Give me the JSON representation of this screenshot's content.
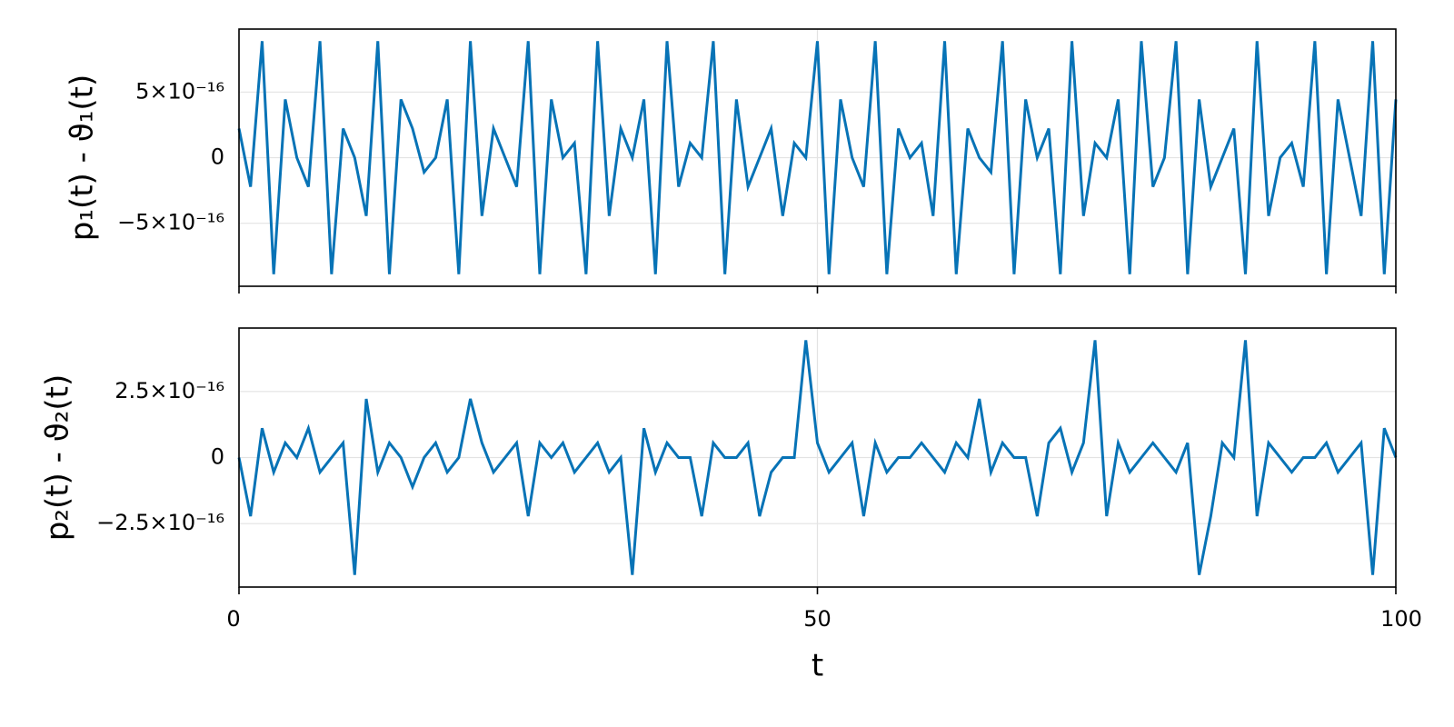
{
  "chart_data": [
    {
      "type": "line",
      "ylabel": "p₁(t) - ϑ₁(t)",
      "color": "#0773b6",
      "grid": true,
      "xlim": [
        0,
        100
      ],
      "xticks": [
        0,
        50,
        100
      ],
      "ylim": [
        -9.8e-16,
        9.8e-16
      ],
      "yticks": [
        {
          "value": -5e-16,
          "label": "−5×10⁻¹⁶"
        },
        0,
        {
          "value": 5e-16,
          "label": "5×10⁻¹⁶"
        }
      ],
      "x": [
        0,
        1,
        2,
        3,
        4,
        5,
        6,
        7,
        8,
        9,
        10,
        11,
        12,
        13,
        14,
        15,
        16,
        17,
        18,
        19,
        20,
        21,
        22,
        23,
        24,
        25,
        26,
        27,
        28,
        29,
        30,
        31,
        32,
        33,
        34,
        35,
        36,
        37,
        38,
        39,
        40,
        41,
        42,
        43,
        44,
        45,
        46,
        47,
        48,
        49,
        50,
        51,
        52,
        53,
        54,
        55,
        56,
        57,
        58,
        59,
        60,
        61,
        62,
        63,
        64,
        65,
        66,
        67,
        68,
        69,
        70,
        71,
        72,
        73,
        74,
        75,
        76,
        77,
        78,
        79,
        80,
        81,
        82,
        83,
        84,
        85,
        86,
        87,
        88,
        89,
        90,
        91,
        92,
        93,
        94,
        95,
        96,
        97,
        98,
        99,
        100
      ],
      "values": [
        2.22e-16,
        -2.22e-16,
        8.88e-16,
        -8.88e-16,
        4.44e-16,
        0,
        -2.22e-16,
        8.88e-16,
        -8.88e-16,
        2.22e-16,
        0,
        -4.44e-16,
        8.88e-16,
        -8.88e-16,
        4.44e-16,
        2.22e-16,
        -1.11e-16,
        0,
        4.44e-16,
        -8.88e-16,
        8.88e-16,
        -4.44e-16,
        2.22e-16,
        0,
        -2.22e-16,
        8.88e-16,
        -8.88e-16,
        4.44e-16,
        0,
        1.11e-16,
        -8.88e-16,
        8.88e-16,
        -4.44e-16,
        2.22e-16,
        0,
        4.44e-16,
        -8.88e-16,
        8.88e-16,
        -2.22e-16,
        1.11e-16,
        0,
        8.88e-16,
        -8.88e-16,
        4.44e-16,
        -2.22e-16,
        0,
        2.22e-16,
        -4.44e-16,
        1.11e-16,
        0,
        8.88e-16,
        -8.88e-16,
        4.44e-16,
        0,
        -2.22e-16,
        8.88e-16,
        -8.88e-16,
        2.22e-16,
        0,
        1.11e-16,
        -4.44e-16,
        8.88e-16,
        -8.88e-16,
        2.22e-16,
        0,
        -1.11e-16,
        8.88e-16,
        -8.88e-16,
        4.44e-16,
        0,
        2.22e-16,
        -8.88e-16,
        8.88e-16,
        -4.44e-16,
        1.11e-16,
        0,
        4.44e-16,
        -8.88e-16,
        8.88e-16,
        -2.22e-16,
        0,
        8.88e-16,
        -8.88e-16,
        4.44e-16,
        -2.22e-16,
        0,
        2.22e-16,
        -8.88e-16,
        8.88e-16,
        -4.44e-16,
        0,
        1.11e-16,
        -2.22e-16,
        8.88e-16,
        -8.88e-16,
        4.44e-16,
        0,
        -4.44e-16,
        8.88e-16,
        -8.88e-16,
        4.44e-16
      ]
    },
    {
      "type": "line",
      "xlabel": "t",
      "ylabel": "p₂(t) - ϑ₂(t)",
      "color": "#0773b6",
      "grid": true,
      "xlim": [
        0,
        100
      ],
      "xticks": [
        0,
        50,
        100
      ],
      "ylim": [
        -4.9e-16,
        4.9e-16
      ],
      "yticks": [
        {
          "value": -2.5e-16,
          "label": "−2.5×10⁻¹⁶"
        },
        0,
        {
          "value": 2.5e-16,
          "label": "2.5×10⁻¹⁶"
        }
      ],
      "x": [
        0,
        1,
        2,
        3,
        4,
        5,
        6,
        7,
        8,
        9,
        10,
        11,
        12,
        13,
        14,
        15,
        16,
        17,
        18,
        19,
        20,
        21,
        22,
        23,
        24,
        25,
        26,
        27,
        28,
        29,
        30,
        31,
        32,
        33,
        34,
        35,
        36,
        37,
        38,
        39,
        40,
        41,
        42,
        43,
        44,
        45,
        46,
        47,
        48,
        49,
        50,
        51,
        52,
        53,
        54,
        55,
        56,
        57,
        58,
        59,
        60,
        61,
        62,
        63,
        64,
        65,
        66,
        67,
        68,
        69,
        70,
        71,
        72,
        73,
        74,
        75,
        76,
        77,
        78,
        79,
        80,
        81,
        82,
        83,
        84,
        85,
        86,
        87,
        88,
        89,
        90,
        91,
        92,
        93,
        94,
        95,
        96,
        97,
        98,
        99,
        100
      ],
      "values": [
        0,
        -2.22e-16,
        1.11e-16,
        -5.55e-17,
        5.55e-17,
        0,
        1.11e-16,
        -5.55e-17,
        0,
        5.55e-17,
        -4.44e-16,
        2.22e-16,
        -5.55e-17,
        5.55e-17,
        0,
        -1.11e-16,
        0,
        5.55e-17,
        -5.55e-17,
        0,
        2.22e-16,
        5.55e-17,
        -5.55e-17,
        0,
        5.55e-17,
        -2.22e-16,
        5.55e-17,
        0,
        5.55e-17,
        -5.55e-17,
        0,
        5.55e-17,
        -5.55e-17,
        0,
        -4.44e-16,
        1.11e-16,
        -5.55e-17,
        5.55e-17,
        0,
        0,
        -2.22e-16,
        5.55e-17,
        0,
        0,
        5.55e-17,
        -2.22e-16,
        -5.55e-17,
        0,
        0,
        4.44e-16,
        5.55e-17,
        -5.55e-17,
        0,
        5.55e-17,
        -2.22e-16,
        5.55e-17,
        -5.55e-17,
        0,
        0,
        5.55e-17,
        0,
        -5.55e-17,
        5.55e-17,
        0,
        2.22e-16,
        -5.55e-17,
        5.55e-17,
        0,
        0,
        -2.22e-16,
        5.55e-17,
        1.11e-16,
        -5.55e-17,
        5.55e-17,
        4.44e-16,
        -2.22e-16,
        5.55e-17,
        -5.55e-17,
        0,
        5.55e-17,
        0,
        -5.55e-17,
        5.55e-17,
        -4.44e-16,
        -2.22e-16,
        5.55e-17,
        0,
        4.44e-16,
        -2.22e-16,
        5.55e-17,
        0,
        -5.55e-17,
        0,
        0,
        5.55e-17,
        -5.55e-17,
        0,
        5.55e-17,
        -4.44e-16,
        1.11e-16,
        0
      ]
    }
  ]
}
